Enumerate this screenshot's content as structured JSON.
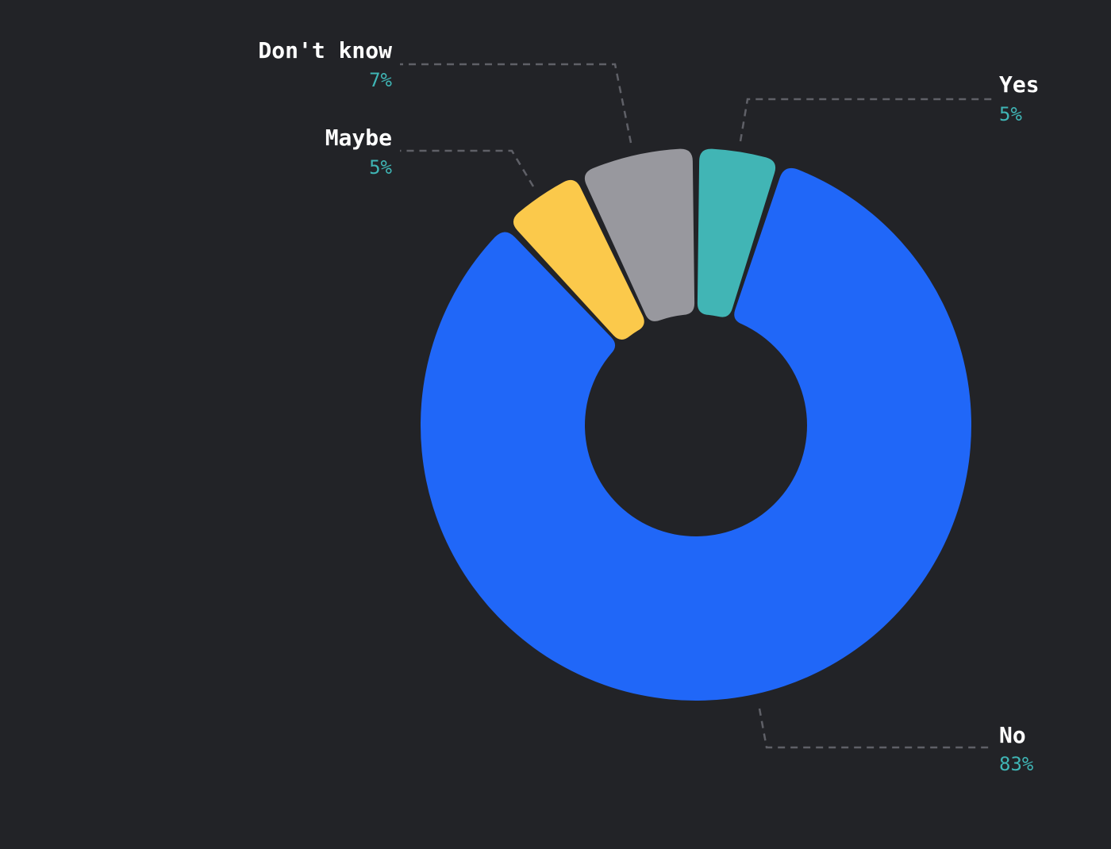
{
  "chart_data": {
    "type": "pie",
    "variant": "donut",
    "title": "",
    "value_color": "#3fb5b5",
    "slices": [
      {
        "label": "Yes",
        "value": 5,
        "value_label": "5%",
        "color": "#41b5b5"
      },
      {
        "label": "No",
        "value": 83,
        "value_label": "83%",
        "color": "#2067f8"
      },
      {
        "label": "Maybe",
        "value": 5,
        "value_label": "5%",
        "color": "#fbc94b"
      },
      {
        "label": "Don't know",
        "value": 7,
        "value_label": "7%",
        "color": "#98989e"
      }
    ],
    "labels_position": "outside-with-leader-lines",
    "legend": "none"
  }
}
